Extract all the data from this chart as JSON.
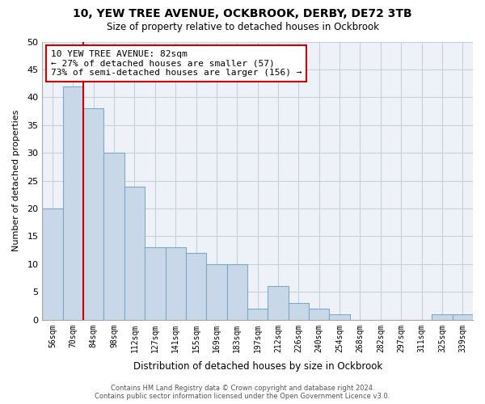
{
  "title": "10, YEW TREE AVENUE, OCKBROOK, DERBY, DE72 3TB",
  "subtitle": "Size of property relative to detached houses in Ockbrook",
  "xlabel": "Distribution of detached houses by size in Ockbrook",
  "ylabel": "Number of detached properties",
  "bin_labels": [
    "56sqm",
    "70sqm",
    "84sqm",
    "98sqm",
    "112sqm",
    "127sqm",
    "141sqm",
    "155sqm",
    "169sqm",
    "183sqm",
    "197sqm",
    "212sqm",
    "226sqm",
    "240sqm",
    "254sqm",
    "268sqm",
    "282sqm",
    "297sqm",
    "311sqm",
    "325sqm",
    "339sqm"
  ],
  "bar_heights": [
    20,
    42,
    38,
    30,
    24,
    13,
    13,
    12,
    10,
    10,
    2,
    6,
    3,
    2,
    1,
    0,
    0,
    0,
    0,
    1,
    1
  ],
  "bar_color": "#c8d8e8",
  "bar_edge_color": "#7aaac8",
  "property_line_color": "#cc0000",
  "ylim": [
    0,
    50
  ],
  "yticks": [
    0,
    5,
    10,
    15,
    20,
    25,
    30,
    35,
    40,
    45,
    50
  ],
  "annotation_title": "10 YEW TREE AVENUE: 82sqm",
  "annotation_line1": "← 27% of detached houses are smaller (57)",
  "annotation_line2": "73% of semi-detached houses are larger (156) →",
  "annotation_box_color": "#ffffff",
  "annotation_box_edge": "#cc0000",
  "footer_line1": "Contains HM Land Registry data © Crown copyright and database right 2024.",
  "footer_line2": "Contains public sector information licensed under the Open Government Licence v3.0.",
  "background_color": "#ffffff",
  "plot_bg_color": "#eef2f8",
  "grid_color": "#c8d0dc"
}
